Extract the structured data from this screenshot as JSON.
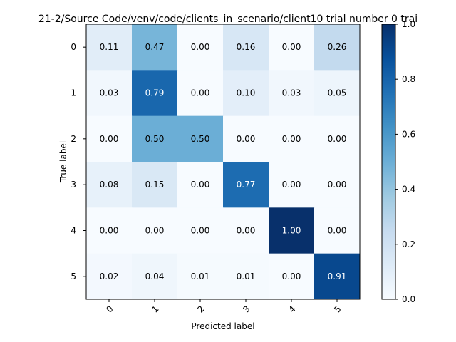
{
  "chart_data": {
    "type": "heatmap",
    "title": "21-2/Source Code/venv/code/clients_in_scenario/client10 trial number 0 trai",
    "xlabel": "Predicted label",
    "ylabel": "True label",
    "x_tick_labels": [
      "0",
      "1",
      "2",
      "3",
      "4",
      "5"
    ],
    "y_tick_labels": [
      "0",
      "1",
      "2",
      "3",
      "4",
      "5"
    ],
    "matrix": [
      [
        0.11,
        0.47,
        0.0,
        0.16,
        0.0,
        0.26
      ],
      [
        0.03,
        0.79,
        0.0,
        0.1,
        0.03,
        0.05
      ],
      [
        0.0,
        0.5,
        0.5,
        0.0,
        0.0,
        0.0
      ],
      [
        0.08,
        0.15,
        0.0,
        0.77,
        0.0,
        0.0
      ],
      [
        0.0,
        0.0,
        0.0,
        0.0,
        1.0,
        0.0
      ],
      [
        0.02,
        0.04,
        0.01,
        0.01,
        0.0,
        0.91
      ]
    ],
    "cell_labels": [
      [
        "0.11",
        "0.47",
        "0.00",
        "0.16",
        "0.00",
        "0.26"
      ],
      [
        "0.03",
        "0.79",
        "0.00",
        "0.10",
        "0.03",
        "0.05"
      ],
      [
        "0.00",
        "0.50",
        "0.50",
        "0.00",
        "0.00",
        "0.00"
      ],
      [
        "0.08",
        "0.15",
        "0.00",
        "0.77",
        "0.00",
        "0.00"
      ],
      [
        "0.00",
        "0.00",
        "0.00",
        "0.00",
        "1.00",
        "0.00"
      ],
      [
        "0.02",
        "0.04",
        "0.01",
        "0.01",
        "0.00",
        "0.91"
      ]
    ],
    "colormap": "Blues",
    "color_range": [
      0.0,
      1.0
    ],
    "colorbar_ticks": [
      "0.0",
      "0.2",
      "0.4",
      "0.6",
      "0.8",
      "1.0"
    ],
    "x_tick_rotation": "45deg"
  }
}
